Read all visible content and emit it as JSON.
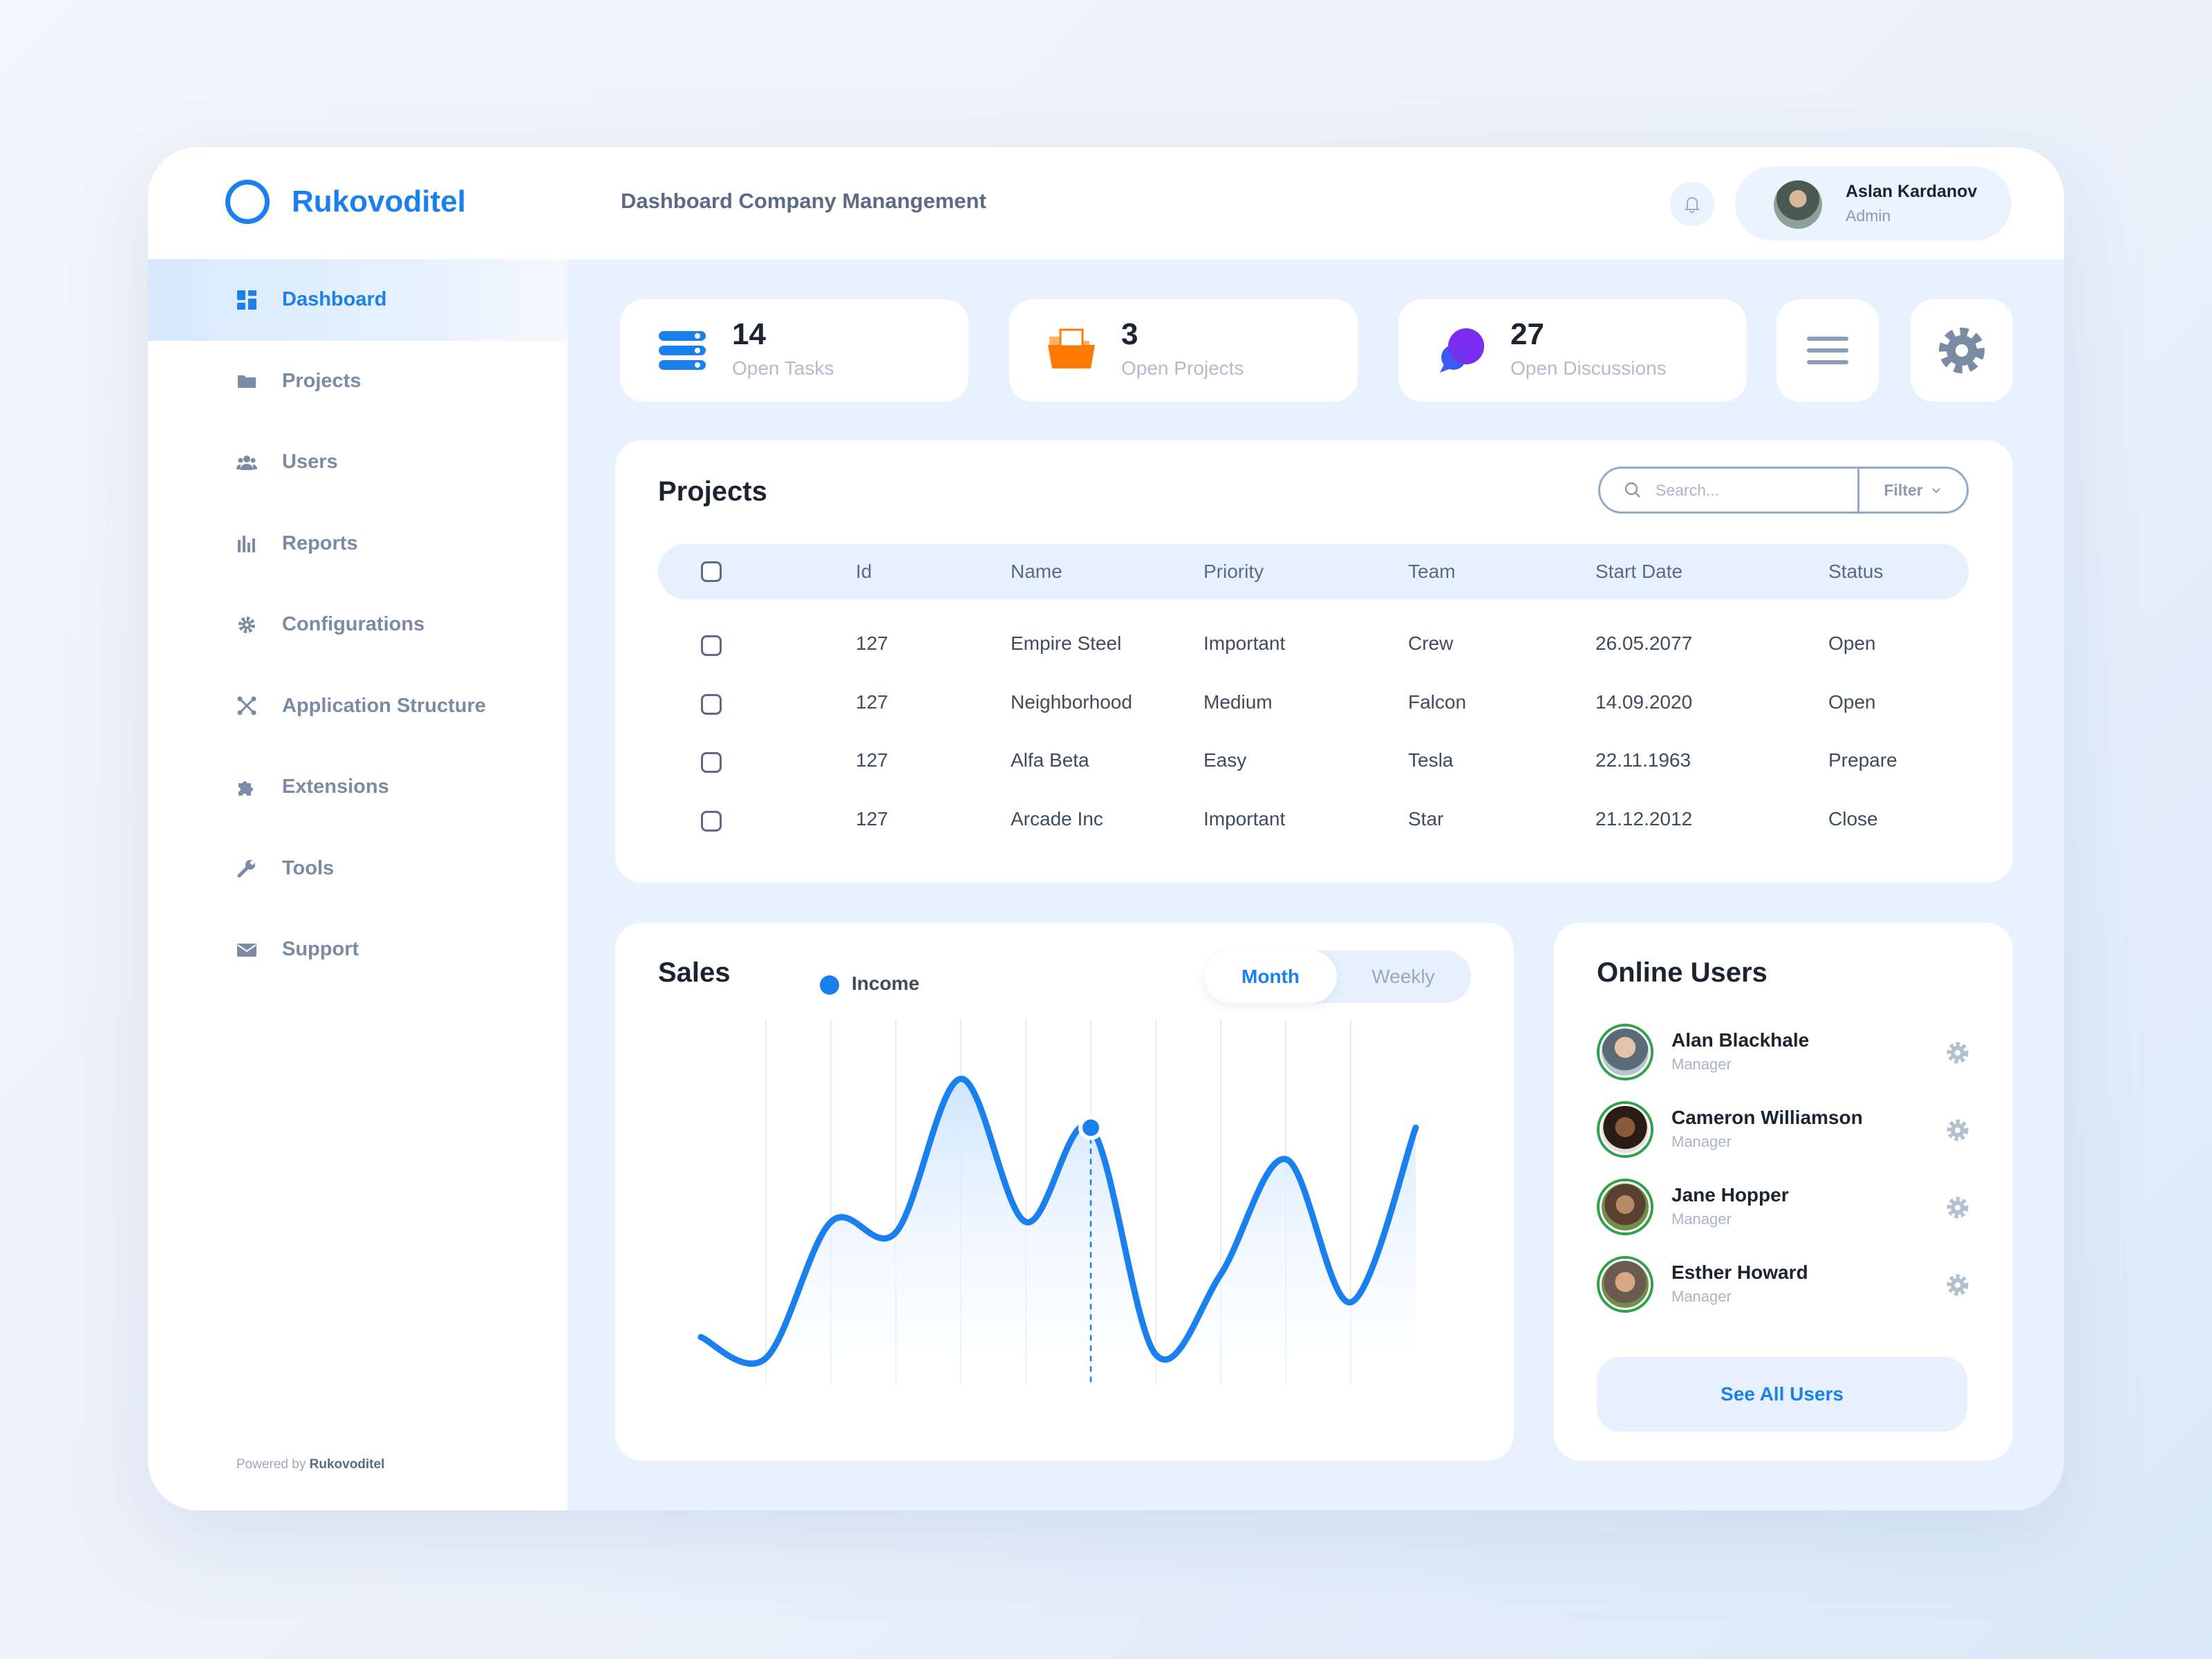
{
  "brand": {
    "name": "Rukovoditel"
  },
  "sidebar": {
    "items": [
      {
        "label": "Dashboard",
        "icon": "dashboard-icon",
        "active": true
      },
      {
        "label": "Projects",
        "icon": "folder-icon",
        "active": false
      },
      {
        "label": "Users",
        "icon": "users-icon",
        "active": false
      },
      {
        "label": "Reports",
        "icon": "bar-chart-icon",
        "active": false
      },
      {
        "label": "Configurations",
        "icon": "gear-icon",
        "active": false
      },
      {
        "label": "Application Structure",
        "icon": "structure-icon",
        "active": false
      },
      {
        "label": "Extensions",
        "icon": "puzzle-icon",
        "active": false
      },
      {
        "label": "Tools",
        "icon": "wrench-icon",
        "active": false
      },
      {
        "label": "Support",
        "icon": "envelope-icon",
        "active": false
      }
    ],
    "powered_prefix": "Powered by",
    "powered_brand": "Rukovoditel"
  },
  "header": {
    "title": "Dashboard Company Manangement",
    "user": {
      "name": "Aslan Kardanov",
      "role": "Admin"
    }
  },
  "stats": [
    {
      "value": "14",
      "label": "Open Tasks",
      "icon": "tasks-icon",
      "color": "#1a80ee"
    },
    {
      "value": "3",
      "label": "Open Projects",
      "icon": "folder-icon",
      "color": "#ff7a00"
    },
    {
      "value": "27",
      "label": "Open Discussions",
      "icon": "chat-icon",
      "color": "#7a2cf0"
    }
  ],
  "projects": {
    "title": "Projects",
    "search_placeholder": "Search...",
    "filter_label": "Filter",
    "columns": [
      "Id",
      "Name",
      "Priority",
      "Team",
      "Start Date",
      "Status"
    ],
    "rows": [
      {
        "id": "127",
        "name": "Empire Steel",
        "priority": "Important",
        "team": "Crew",
        "start": "26.05.2077",
        "status": "Open"
      },
      {
        "id": "127",
        "name": "Neighborhood",
        "priority": "Medium",
        "team": "Falcon",
        "start": "14.09.2020",
        "status": "Open"
      },
      {
        "id": "127",
        "name": "Alfa Beta",
        "priority": "Easy",
        "team": "Tesla",
        "start": "22.11.1963",
        "status": "Prepare"
      },
      {
        "id": "127",
        "name": "Arcade Inc",
        "priority": "Important",
        "team": "Star",
        "start": "21.12.2012",
        "status": "Close"
      }
    ]
  },
  "sales": {
    "title": "Sales",
    "legend": "Income",
    "toggle": {
      "month": "Month",
      "weekly": "Weekly",
      "active": "Month"
    }
  },
  "chart_data": {
    "type": "line",
    "title": "Sales",
    "series": [
      {
        "name": "Income",
        "color": "#1a80ee",
        "values": [
          0.12,
          0.06,
          0.45,
          0.42,
          0.86,
          0.45,
          0.72,
          0.07,
          0.3,
          0.63,
          0.22,
          0.72
        ]
      }
    ],
    "highlight_index": 6,
    "grid": "vertical",
    "axes_labels_shown": false
  },
  "online": {
    "title": "Online Users",
    "users": [
      {
        "name": "Alan Blackhale",
        "role": "Manager"
      },
      {
        "name": "Cameron Williamson",
        "role": "Manager"
      },
      {
        "name": "Jane Hopper",
        "role": "Manager"
      },
      {
        "name": "Esther Howard",
        "role": "Manager"
      }
    ],
    "see_all": "See All Users"
  },
  "colors": {
    "accent": "#1a80ee",
    "online": "#2fa24a",
    "text_muted": "#7a8ba3"
  }
}
